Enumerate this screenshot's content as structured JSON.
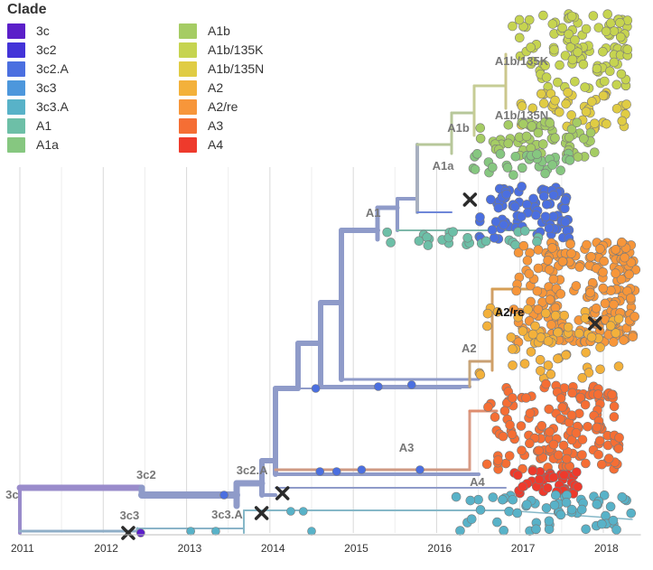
{
  "legend": {
    "title": "Clade",
    "items": [
      {
        "label": "3c",
        "color": "#5B1FC9"
      },
      {
        "label": "3c2",
        "color": "#4333D8"
      },
      {
        "label": "3c2.A",
        "color": "#4B6FE0"
      },
      {
        "label": "3c3",
        "color": "#4D97DC"
      },
      {
        "label": "3c3.A",
        "color": "#58B2C8"
      },
      {
        "label": "A1",
        "color": "#6DBFA7"
      },
      {
        "label": "A1a",
        "color": "#86C780"
      },
      {
        "label": "A1b",
        "color": "#A5CC64"
      },
      {
        "label": "A1b/135K",
        "color": "#C6D450"
      },
      {
        "label": "A1b/135N",
        "color": "#E0CC44"
      },
      {
        "label": "A2",
        "color": "#F3B13B"
      },
      {
        "label": "A2/re",
        "color": "#F7963A"
      },
      {
        "label": "A3",
        "color": "#F56E34"
      },
      {
        "label": "A4",
        "color": "#EE3A2C"
      }
    ]
  },
  "chart_data": {
    "type": "scatter",
    "description_type": "time-scaled phylogenetic tree",
    "x_axis": {
      "ticks": [
        "2011",
        "2012",
        "2013",
        "2014",
        "2015",
        "2016",
        "2017",
        "2018"
      ],
      "range": [
        2011.0,
        2018.45
      ]
    },
    "grid": true,
    "legend_placement": "top-left",
    "branch_labels": [
      {
        "text": "3c",
        "x": 2010.98,
        "clade": "3c"
      },
      {
        "text": "3c2",
        "x": 2012.55,
        "clade": "3c2"
      },
      {
        "text": "3c2.A",
        "x": 2013.75,
        "clade": "3c2.A"
      },
      {
        "text": "3c3",
        "x": 2012.35,
        "clade": "3c3"
      },
      {
        "text": "3c3.A",
        "x": 2013.45,
        "clade": "3c3.A"
      },
      {
        "text": "A1",
        "x": 2015.3,
        "clade": "A1"
      },
      {
        "text": "A1a",
        "x": 2016.1,
        "clade": "A1a"
      },
      {
        "text": "A1b",
        "x": 2016.28,
        "clade": "A1b"
      },
      {
        "text": "A1b/135K",
        "x": 2016.85,
        "clade": "A1b/135K"
      },
      {
        "text": "A1b/135N",
        "x": 2016.85,
        "clade": "A1b/135N"
      },
      {
        "text": "A2",
        "x": 2016.45,
        "clade": "A2"
      },
      {
        "text": "A2/re",
        "x": 2016.85,
        "clade": "A2/re"
      },
      {
        "text": "A3",
        "x": 2015.7,
        "clade": "A3"
      },
      {
        "text": "A4",
        "x": 2016.55,
        "clade": "A4"
      }
    ],
    "markers": [
      {
        "x": 2012.3,
        "clade": "3c3"
      },
      {
        "x": 2013.9,
        "clade": "3c3.A"
      },
      {
        "x": 2014.15,
        "clade": "3c2.A"
      },
      {
        "x": 2016.4,
        "clade": "A1"
      },
      {
        "x": 2017.9,
        "clade": "A2/re"
      }
    ],
    "tip_clusters": [
      {
        "clade": "A1b/135K",
        "x_min": 2016.9,
        "x_max": 2018.3,
        "count": 110
      },
      {
        "clade": "A1b/135N",
        "x_min": 2016.9,
        "x_max": 2018.3,
        "count": 45
      },
      {
        "clade": "A1b",
        "x_min": 2016.5,
        "x_max": 2017.9,
        "count": 60
      },
      {
        "clade": "A1a",
        "x_min": 2016.4,
        "x_max": 2017.6,
        "count": 30
      },
      {
        "clade": "3c2.A",
        "x_min": 2016.5,
        "x_max": 2017.6,
        "count": 90
      },
      {
        "clade": "A1",
        "x_min": 2015.3,
        "x_max": 2017.3,
        "count": 25
      },
      {
        "clade": "A2/re",
        "x_min": 2016.9,
        "x_max": 2018.4,
        "count": 220
      },
      {
        "clade": "A2",
        "x_min": 2016.5,
        "x_max": 2018.2,
        "count": 60
      },
      {
        "clade": "A3",
        "x_min": 2016.6,
        "x_max": 2018.2,
        "count": 150
      },
      {
        "clade": "A4",
        "x_min": 2016.9,
        "x_max": 2017.7,
        "count": 40
      },
      {
        "clade": "3c3.A",
        "x_min": 2016.2,
        "x_max": 2018.4,
        "count": 60
      }
    ]
  }
}
